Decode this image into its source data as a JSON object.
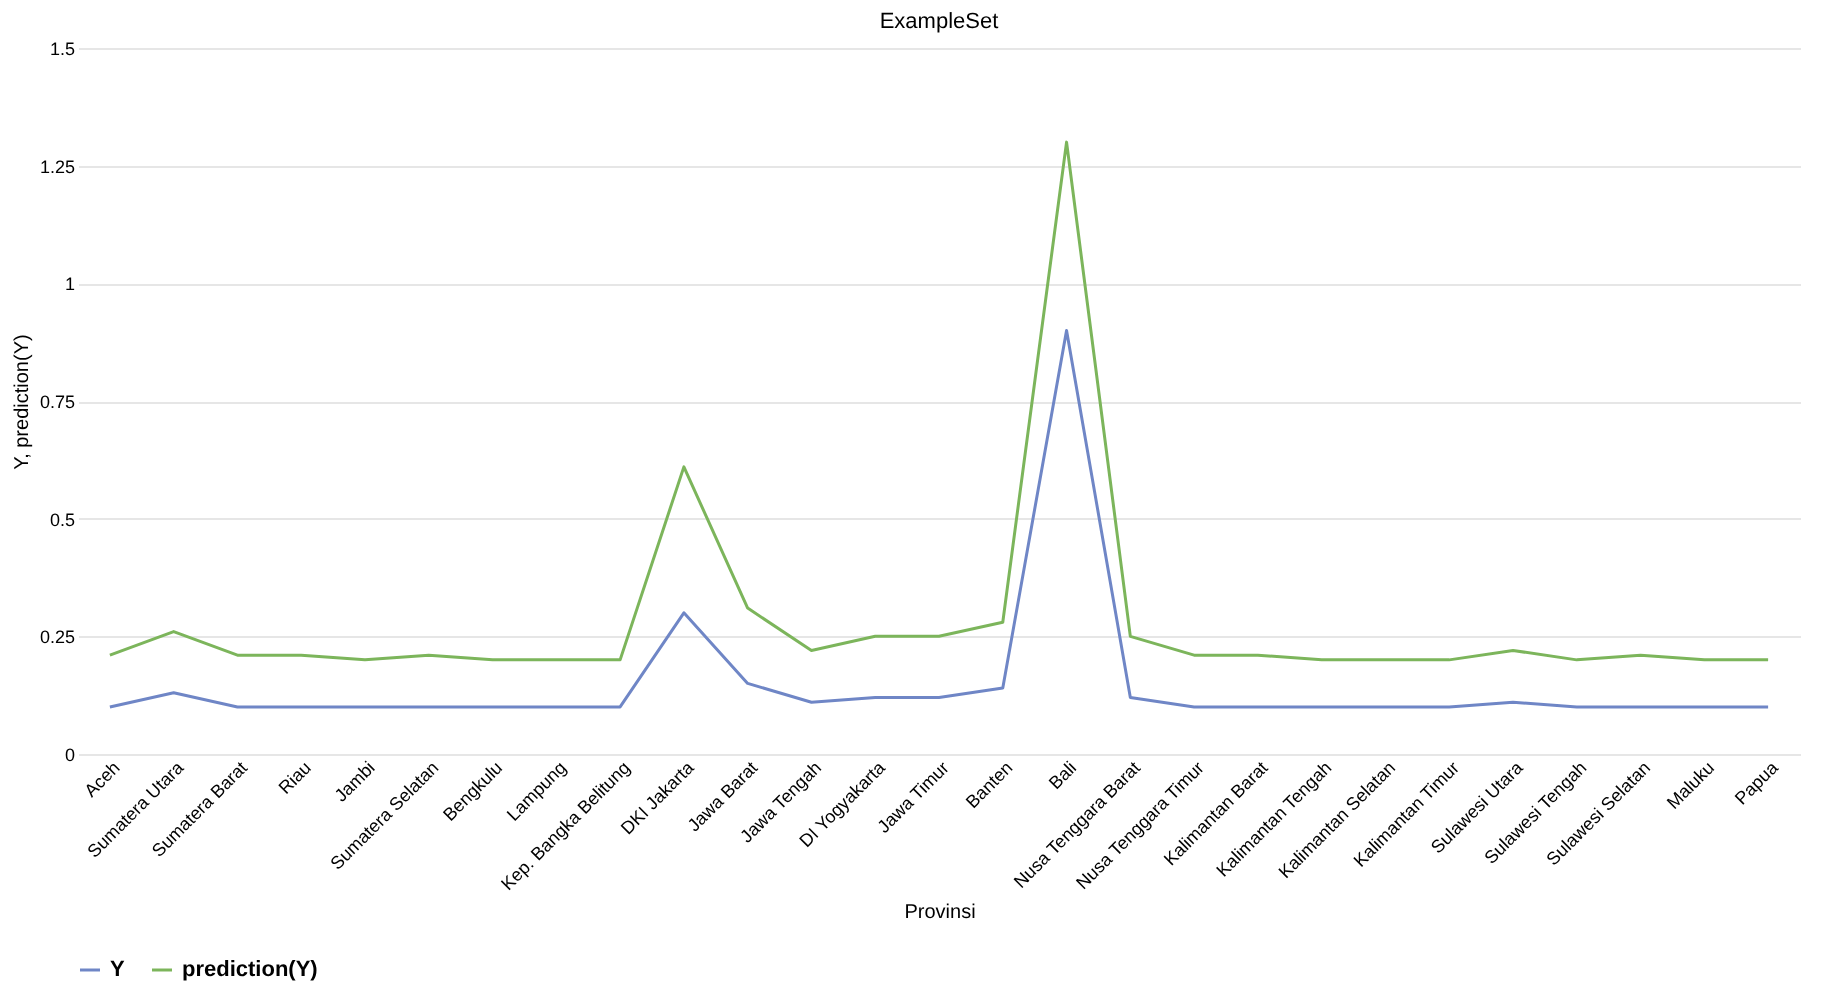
{
  "chart_data": {
    "type": "line",
    "title": "ExampleSet",
    "xlabel": "Provinsi",
    "ylabel": "Y, prediction(Y)",
    "categories": [
      "Aceh",
      "Sumatera Utara",
      "Sumatera Barat",
      "Riau",
      "Jambi",
      "Sumatera Selatan",
      "Bengkulu",
      "Lampung",
      "Kep. Bangka Belitung",
      "DKI Jakarta",
      "Jawa Barat",
      "Jawa Tengah",
      "DI Yogyakarta",
      "Jawa Timur",
      "Banten",
      "Bali",
      "Nusa Tenggara Barat",
      "Nusa Tenggara Timur",
      "Kalimantan Barat",
      "Kalimantan Tengah",
      "Kalimantan Selatan",
      "Kalimantan Timur",
      "Sulawesi Utara",
      "Sulawesi Tengah",
      "Sulawesi Selatan",
      "Maluku",
      "Papua"
    ],
    "series": [
      {
        "name": "Y",
        "color": "#6f86c6",
        "values": [
          0.1,
          0.13,
          0.1,
          0.1,
          0.1,
          0.1,
          0.1,
          0.1,
          0.1,
          0.3,
          0.15,
          0.11,
          0.12,
          0.12,
          0.14,
          0.9,
          0.12,
          0.1,
          0.1,
          0.1,
          0.1,
          0.1,
          0.11,
          0.1,
          0.1,
          0.1,
          0.1
        ]
      },
      {
        "name": "prediction(Y)",
        "color": "#7cb55b",
        "values": [
          0.21,
          0.26,
          0.21,
          0.21,
          0.2,
          0.21,
          0.2,
          0.2,
          0.2,
          0.61,
          0.31,
          0.22,
          0.25,
          0.25,
          0.28,
          1.3,
          0.25,
          0.21,
          0.21,
          0.2,
          0.2,
          0.2,
          0.22,
          0.2,
          0.21,
          0.2,
          0.2
        ]
      }
    ],
    "ylim": [
      0,
      1.5
    ],
    "yticks": [
      0,
      0.25,
      0.5,
      0.75,
      1,
      1.25,
      1.5
    ],
    "grid": "y",
    "legend": "bottom",
    "marker": "none",
    "line_style": "solid"
  }
}
